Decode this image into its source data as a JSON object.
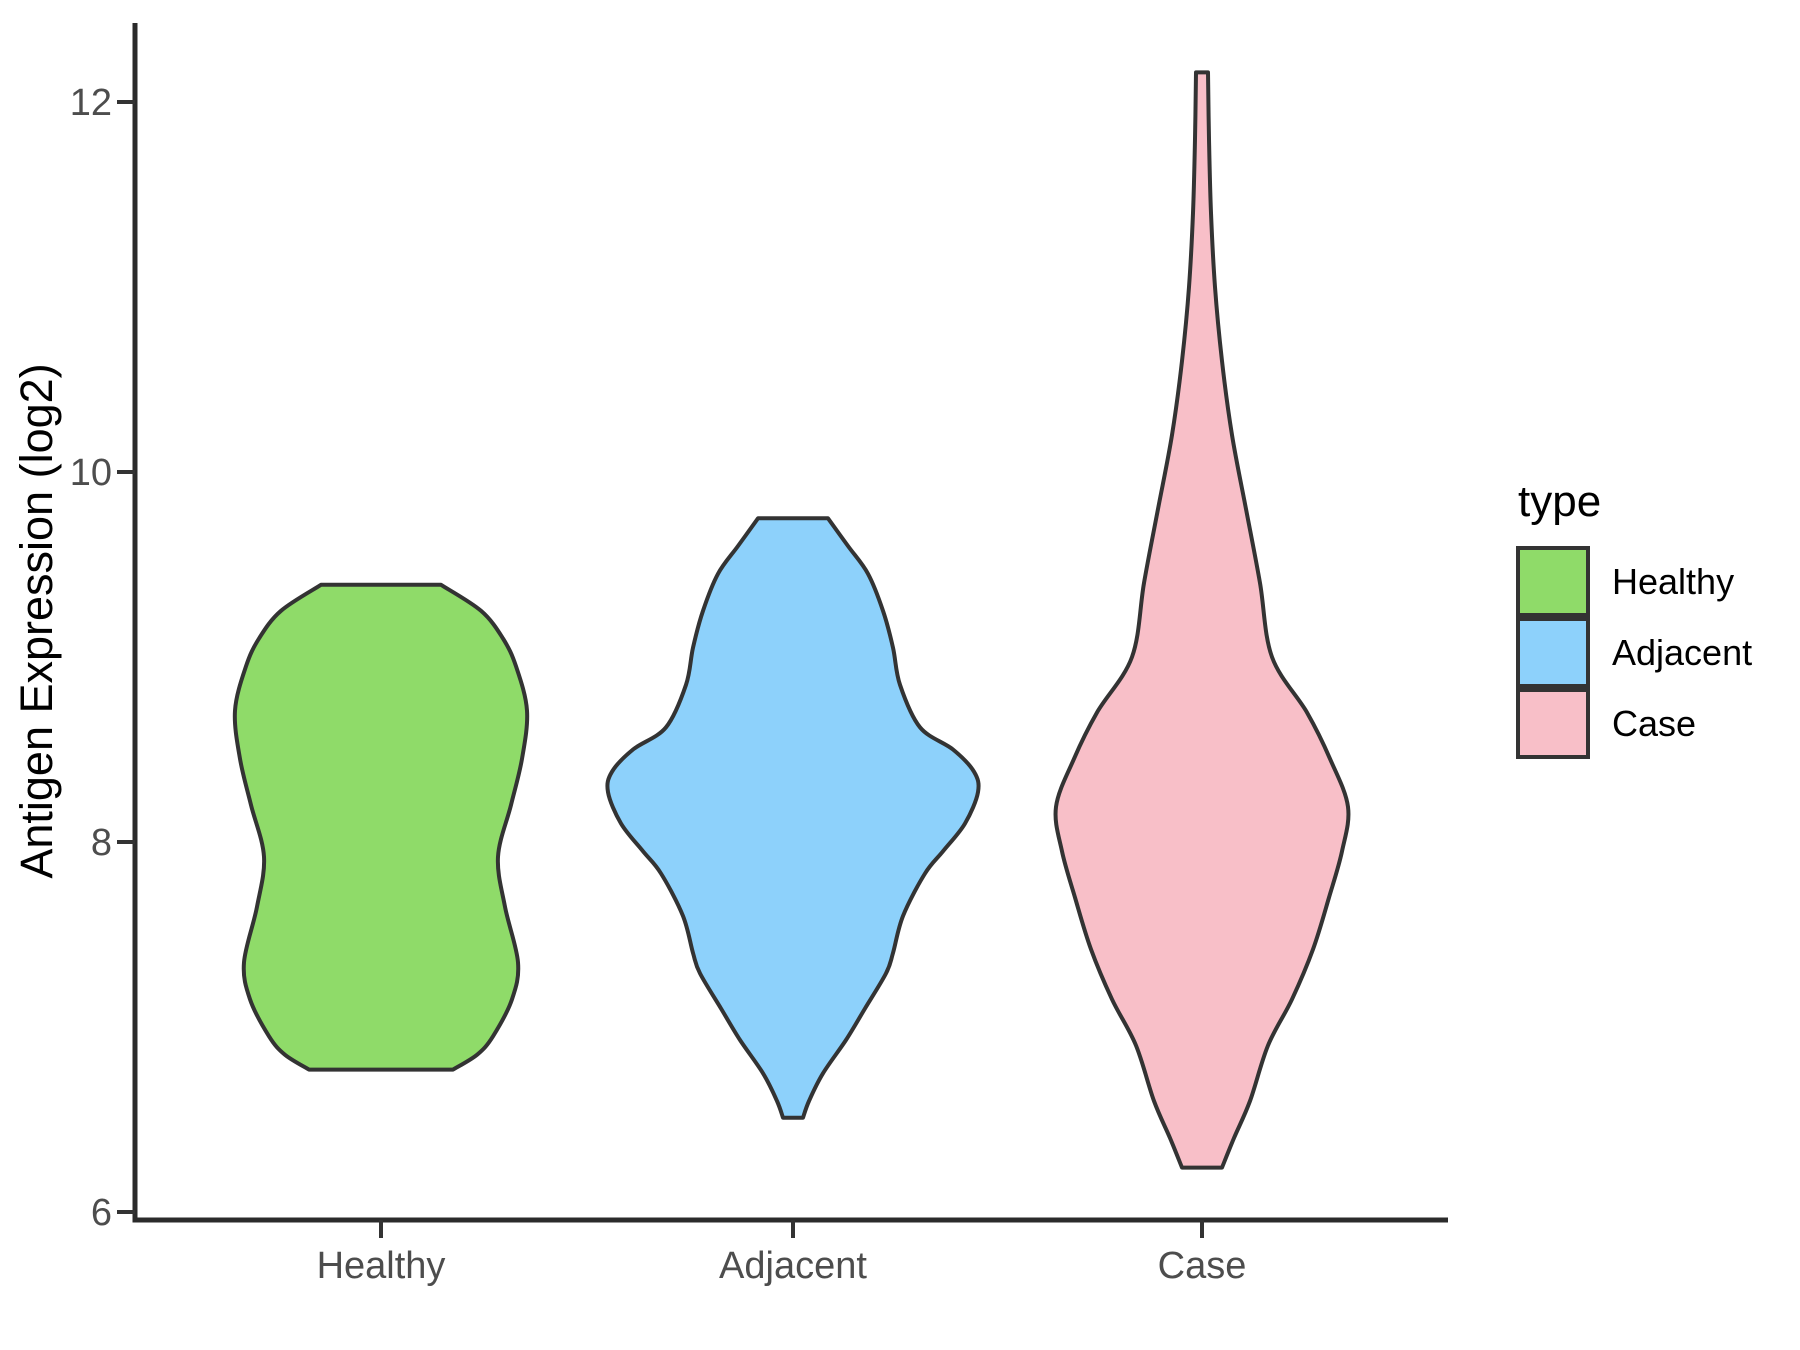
{
  "figure": {
    "background": "#ffffff",
    "axis_color": "#2b2b2b",
    "tick_color": "#333333",
    "tick_label_color": "#4d4d4d",
    "violin_outline_color": "#333333"
  },
  "y_axis": {
    "title": "Antigen Expression (log2)",
    "ticks": [
      {
        "label": "6",
        "value": 6
      },
      {
        "label": "8",
        "value": 8
      },
      {
        "label": "10",
        "value": 10
      },
      {
        "label": "12",
        "value": 12
      }
    ]
  },
  "x_axis": {
    "categories": [
      "Healthy",
      "Adjacent",
      "Case"
    ]
  },
  "legend": {
    "title": "type",
    "items": [
      {
        "label": "Healthy",
        "color": "#8fdb69"
      },
      {
        "label": "Adjacent",
        "color": "#8dd1fb"
      },
      {
        "label": "Case",
        "color": "#f8bfc8"
      }
    ]
  },
  "chart_data": {
    "type": "violin",
    "title": "",
    "xlabel": "",
    "ylabel": "Antigen Expression (log2)",
    "categories": [
      "Healthy",
      "Adjacent",
      "Case"
    ],
    "ylim": [
      6,
      12.3
    ],
    "y_tick_values": [
      6,
      8,
      10,
      12
    ],
    "legend_position": "right",
    "grid": false,
    "series": [
      {
        "name": "Healthy",
        "color": "#8fdb69",
        "min": 6.77,
        "max": 9.39,
        "profile_note": "pairs of [expression_value, half_width_px]; width is proportional to density",
        "profile": [
          [
            9.39,
            60
          ],
          [
            9.25,
            100
          ],
          [
            9.1,
            122
          ],
          [
            8.95,
            135
          ],
          [
            8.71,
            146
          ],
          [
            8.45,
            141
          ],
          [
            8.2,
            130
          ],
          [
            7.92,
            117
          ],
          [
            7.65,
            124
          ],
          [
            7.35,
            137
          ],
          [
            7.15,
            131
          ],
          [
            6.95,
            112
          ],
          [
            6.85,
            96
          ],
          [
            6.77,
            72
          ]
        ]
      },
      {
        "name": "Adjacent",
        "color": "#8dd1fb",
        "min": 6.51,
        "max": 9.75,
        "profile_note": "pairs of [expression_value, half_width_px]; width is proportional to density",
        "profile": [
          [
            9.75,
            35
          ],
          [
            9.6,
            55
          ],
          [
            9.45,
            75
          ],
          [
            9.25,
            90
          ],
          [
            9.05,
            100
          ],
          [
            8.85,
            107
          ],
          [
            8.62,
            127
          ],
          [
            8.5,
            160
          ],
          [
            8.38,
            181
          ],
          [
            8.27,
            185
          ],
          [
            8.1,
            172
          ],
          [
            7.95,
            150
          ],
          [
            7.83,
            132
          ],
          [
            7.6,
            110
          ],
          [
            7.4,
            100
          ],
          [
            7.29,
            93
          ],
          [
            7.1,
            72
          ],
          [
            6.93,
            53
          ],
          [
            6.75,
            30
          ],
          [
            6.6,
            16
          ],
          [
            6.51,
            10
          ]
        ]
      },
      {
        "name": "Case",
        "color": "#f8bfc8",
        "min": 6.24,
        "max": 12.16,
        "profile_note": "pairs of [expression_value, half_width_px]; width is proportional to density",
        "profile": [
          [
            12.16,
            6
          ],
          [
            11.8,
            7
          ],
          [
            11.4,
            9
          ],
          [
            11.0,
            13
          ],
          [
            10.6,
            20
          ],
          [
            10.2,
            30
          ],
          [
            9.8,
            44
          ],
          [
            9.4,
            58
          ],
          [
            9.0,
            70
          ],
          [
            8.7,
            105
          ],
          [
            8.45,
            128
          ],
          [
            8.19,
            146
          ],
          [
            7.95,
            140
          ],
          [
            7.7,
            127
          ],
          [
            7.42,
            111
          ],
          [
            7.15,
            90
          ],
          [
            6.9,
            66
          ],
          [
            6.6,
            48
          ],
          [
            6.4,
            32
          ],
          [
            6.24,
            20
          ]
        ]
      }
    ]
  }
}
